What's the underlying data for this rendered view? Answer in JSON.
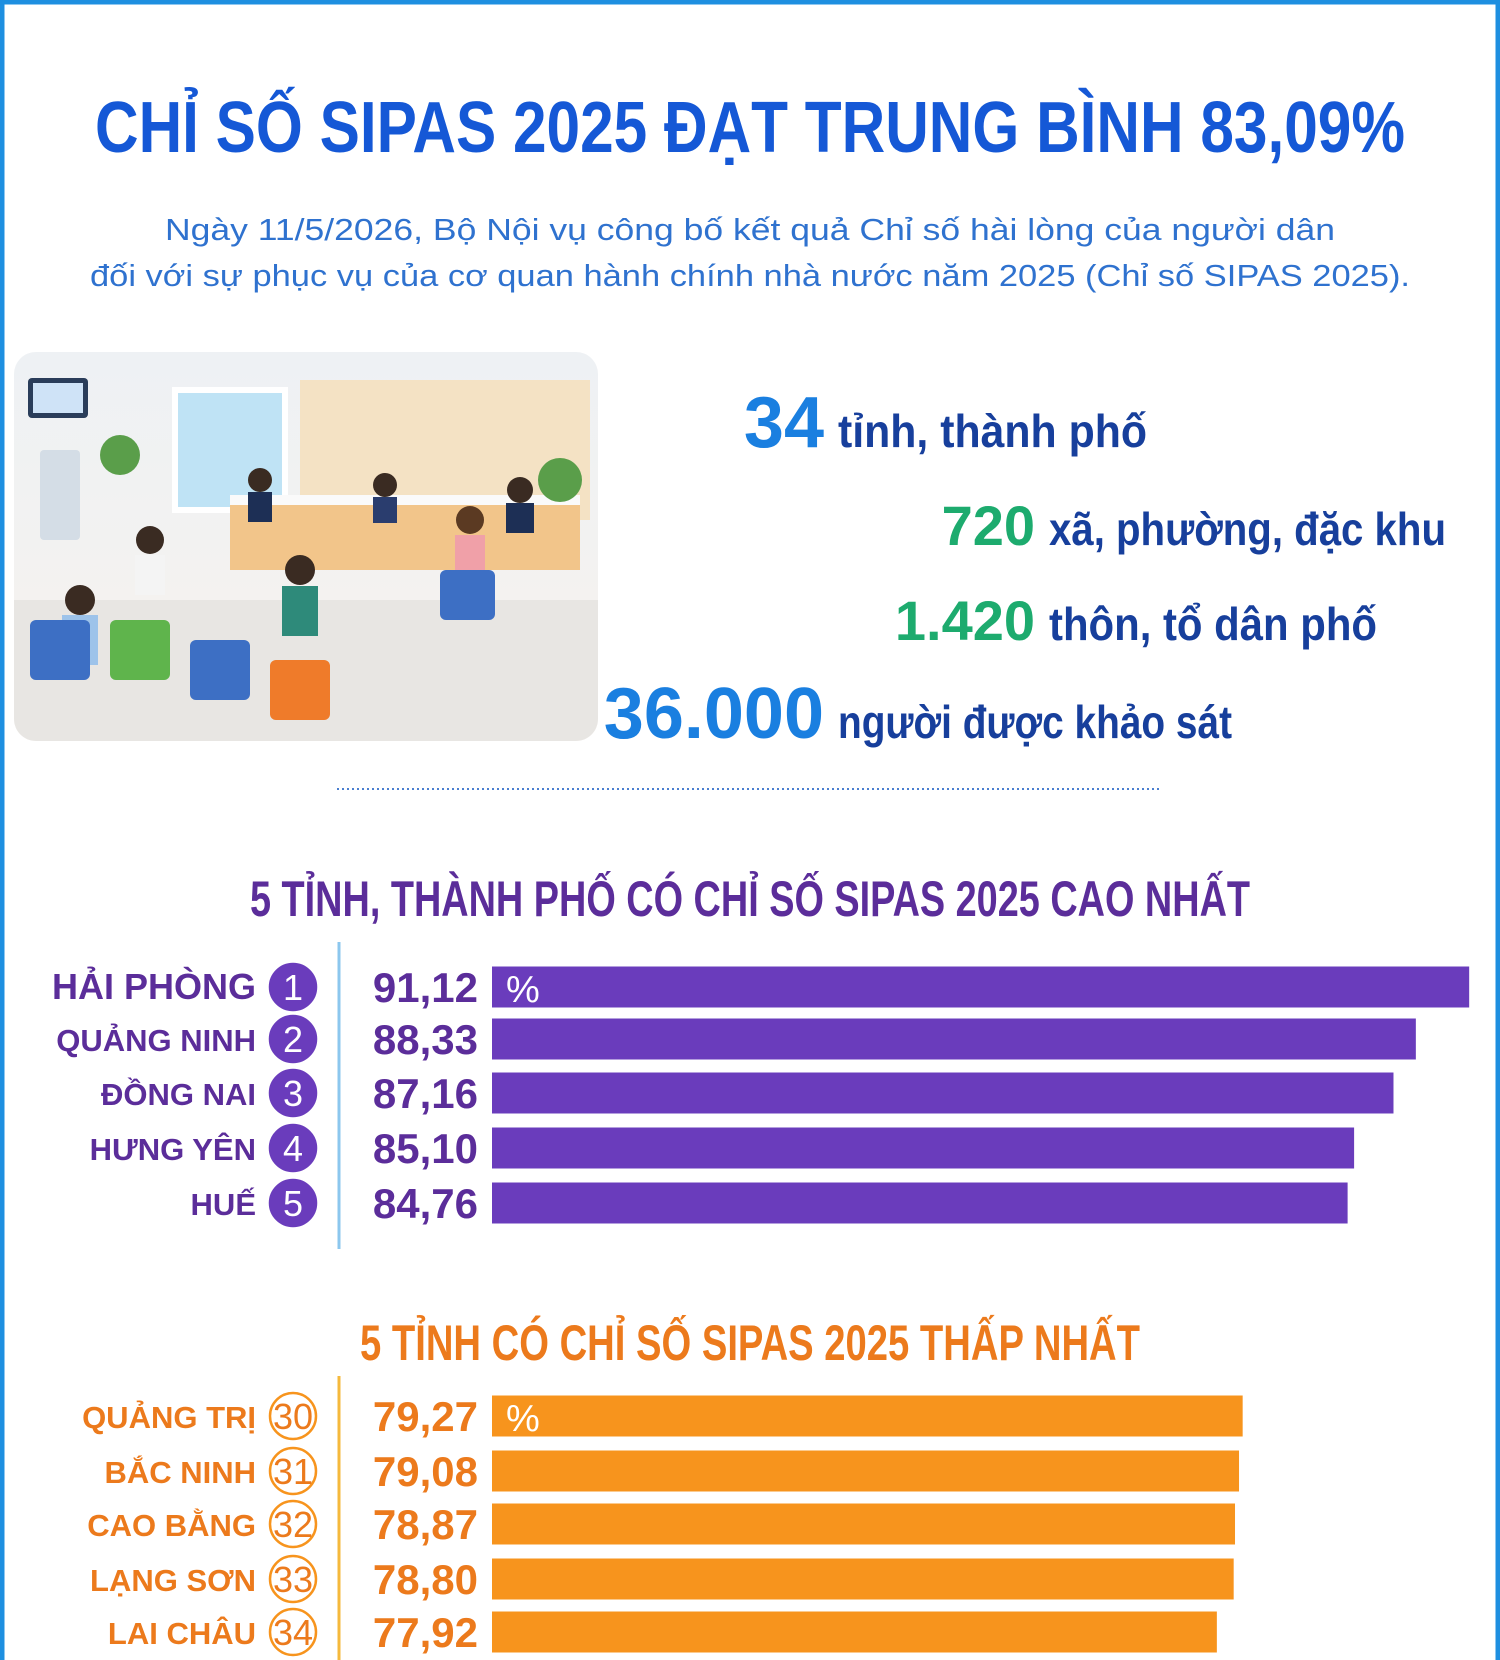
{
  "header": {
    "title": "CHỈ SỐ SIPAS 2025 ĐẠT TRUNG BÌNH 83,09%",
    "subtitle": [
      "Ngày 11/5/2026, Bộ Nội vụ công bố kết quả Chỉ số hài lòng của người dân",
      "đối với sự phục vụ của cơ quan hành chính nhà nước năm 2025 (Chỉ số SIPAS 2025)."
    ]
  },
  "stats": [
    {
      "number": "34",
      "label": "tỉnh, thành phố",
      "color": "#1a7fe0"
    },
    {
      "number": "720",
      "label": "xã, phường, đặc khu",
      "color": "#1dab6e"
    },
    {
      "number": "1.420",
      "label": "thôn, tổ dân phố",
      "color": "#1dab6e"
    },
    {
      "number": "36.000",
      "label": "người được khảo sát",
      "color": "#1a7fe0"
    }
  ],
  "chart_data": [
    {
      "type": "bar",
      "orientation": "horizontal",
      "title": "5 TỈNH, THÀNH PHỐ CÓ CHỈ SỐ SIPAS 2025 CAO NHẤT",
      "categories": [
        "HẢI PHÒNG",
        "QUẢNG NINH",
        "ĐỒNG NAI",
        "HƯNG YÊN",
        "HUẾ"
      ],
      "ranks": [
        1,
        2,
        3,
        4,
        5
      ],
      "values": [
        91.12,
        88.33,
        87.16,
        85.1,
        84.76
      ],
      "value_labels": [
        "91,12",
        "88,33",
        "87,16",
        "85,10",
        "84,76"
      ],
      "unit": "%",
      "color": "#6a3cbc",
      "text_color": "#5b2d9a",
      "rank_badge": "filled",
      "xlim": [
        40,
        92
      ]
    },
    {
      "type": "bar",
      "orientation": "horizontal",
      "title": "5 TỈNH CÓ CHỈ SỐ SIPAS 2025 THẤP NHẤT",
      "categories": [
        "QUẢNG TRỊ",
        "BẮC NINH",
        "CAO BẰNG",
        "LẠNG SƠN",
        "LAI CHÂU"
      ],
      "ranks": [
        30,
        31,
        32,
        33,
        34
      ],
      "values": [
        79.27,
        79.08,
        78.87,
        78.8,
        77.92
      ],
      "value_labels": [
        "79,27",
        "79,08",
        "78,87",
        "78,80",
        "77,92"
      ],
      "unit": "%",
      "color": "#f7941d",
      "text_color": "#ec7a1c",
      "rank_badge": "outline",
      "xlim": [
        40,
        92
      ]
    }
  ]
}
